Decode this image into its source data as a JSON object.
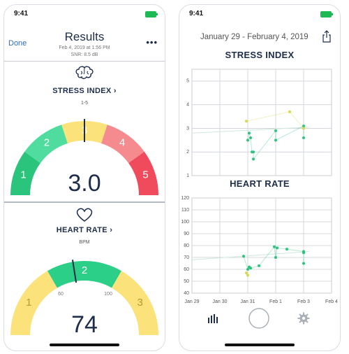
{
  "status": {
    "time": "9:41"
  },
  "results": {
    "done": "Done",
    "title": "Results",
    "date": "Feb 4, 2019 at 1:56 PM",
    "snr": "SNR: 8.5 dB",
    "more": "•••",
    "stress": {
      "title": "STRESS INDEX ›",
      "range": "1-5",
      "value": "3.0",
      "value_num": 3.0,
      "segments": [
        "1",
        "2",
        "3",
        "4",
        "5"
      ],
      "colors": [
        "#2bc47c",
        "#4fdc9e",
        "#fbe27a",
        "#f58a8f",
        "#ef4b5d"
      ],
      "icon": "brain-icon"
    },
    "heart": {
      "title": "HEART RATE ›",
      "unit": "BPM",
      "value": "74",
      "value_num": 74,
      "segments": [
        "1",
        "2",
        "3"
      ],
      "thresholds": [
        "60",
        "100"
      ],
      "colors": [
        "#fbe27a",
        "#2bcf87",
        "#fbe27a"
      ],
      "icon": "heart-icon"
    }
  },
  "trends": {
    "date_range": "January 29 - February 4, 2019",
    "x_labels": [
      "Jan 29",
      "Jan 30",
      "Jan 31",
      "Feb 1",
      "Feb 3",
      "Feb 4"
    ],
    "tabs": [
      "chart-icon",
      "record-button-icon",
      "gear-icon"
    ]
  },
  "chart_data": [
    {
      "type": "scatter",
      "title": "STRESS INDEX",
      "ylim": [
        1,
        5.5
      ],
      "yticks": [
        1,
        2,
        3,
        4,
        5
      ],
      "grid": true,
      "series": [
        {
          "color": "#2bc47c",
          "x": [
            2.0,
            2.05,
            2.1,
            2.15,
            2.2,
            2.2,
            3.0,
            3.0,
            4.0,
            4.0
          ],
          "y": [
            2.5,
            2.8,
            2.6,
            2.0,
            2.0,
            1.7,
            2.9,
            2.5,
            3.1,
            2.6
          ]
        },
        {
          "color": "#d8d84a",
          "x": [
            1.95,
            3.5,
            4.0
          ],
          "y": [
            3.3,
            3.7,
            3.0
          ]
        }
      ],
      "average": {
        "x": [
          0,
          4.2
        ],
        "y": [
          2.8,
          3.05
        ]
      }
    },
    {
      "type": "scatter",
      "title": "HEART RATE",
      "ylim": [
        40,
        120
      ],
      "yticks": [
        40,
        50,
        60,
        70,
        80,
        90,
        100,
        110,
        120
      ],
      "grid": true,
      "series": [
        {
          "color": "#2bc47c",
          "x": [
            1.85,
            2.0,
            2.05,
            2.1,
            2.4,
            2.95,
            3.0,
            3.05,
            3.4,
            4.0,
            4.0,
            4.0
          ],
          "y": [
            71,
            60,
            62,
            61,
            63,
            79,
            70,
            78,
            77,
            75,
            74,
            65
          ]
        },
        {
          "color": "#d8d84a",
          "x": [
            1.95,
            2.0
          ],
          "y": [
            57,
            55
          ]
        }
      ],
      "average": {
        "x": [
          0,
          4.2
        ],
        "y": [
          68,
          75
        ]
      }
    }
  ]
}
